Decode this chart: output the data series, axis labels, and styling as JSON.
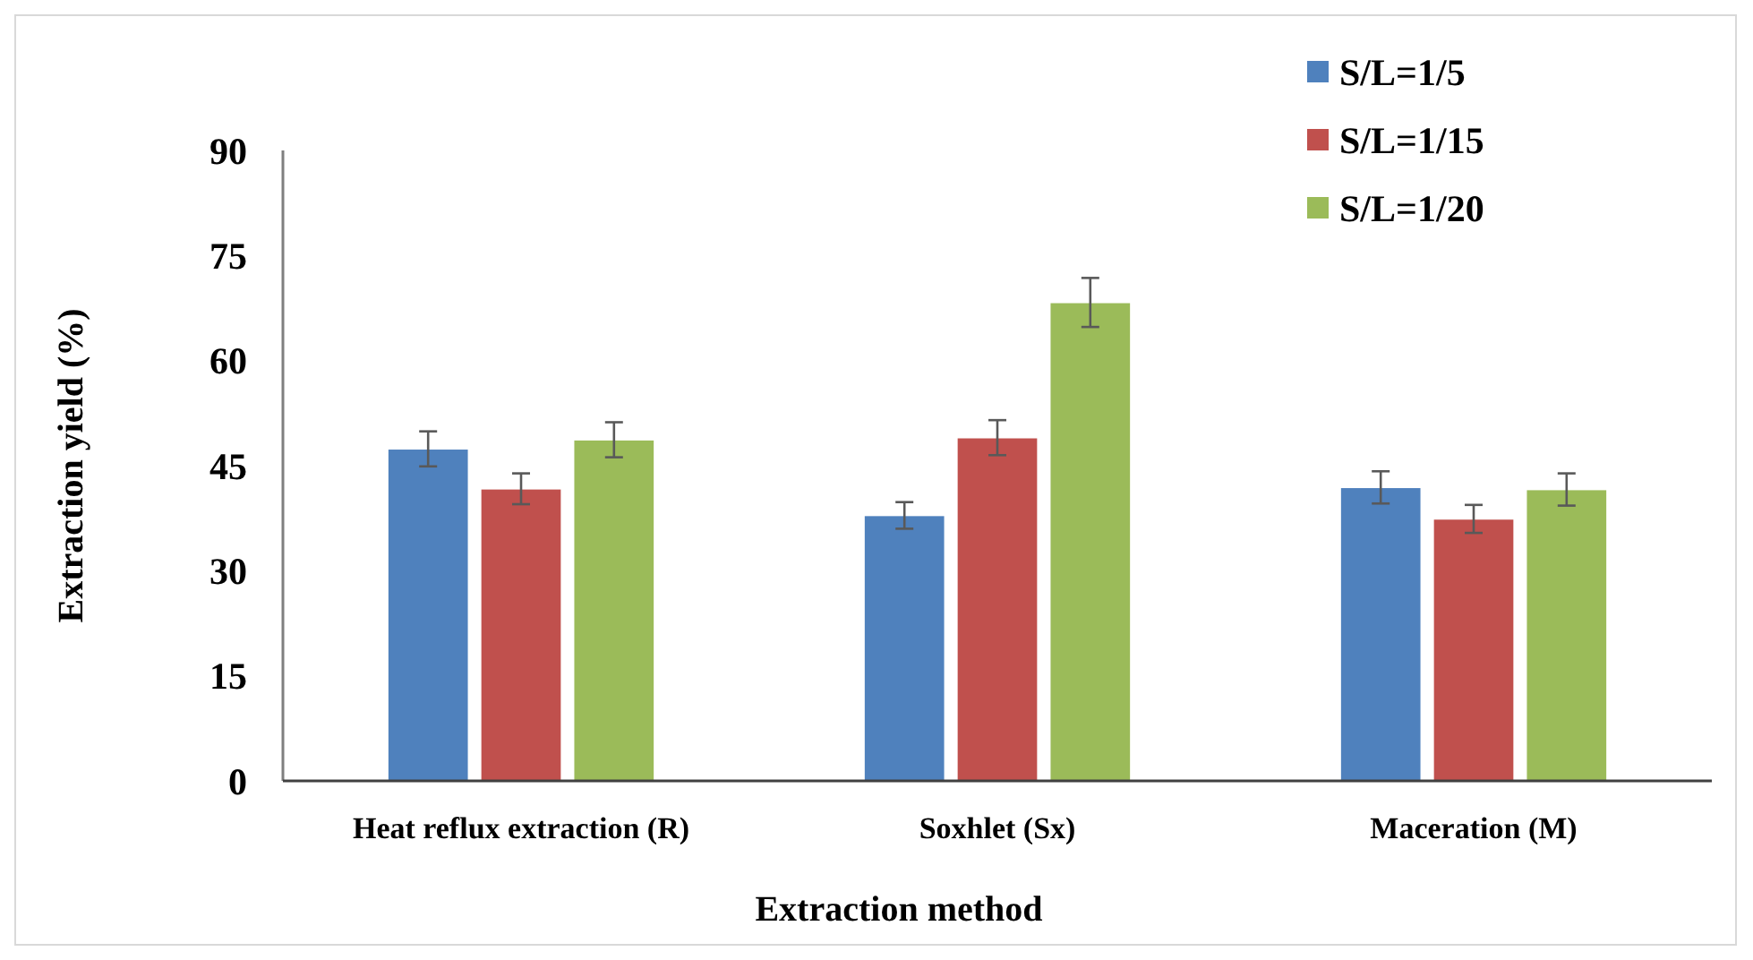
{
  "chart_data": {
    "type": "bar",
    "xlabel": "Extraction method",
    "ylabel": "Extraction yield (%)",
    "categories": [
      "Heat reflux extraction (R)",
      "Soxhlet (Sx)",
      "Maceration (M)"
    ],
    "series": [
      {
        "name": "S/L=1/5",
        "color": "#4f81bd",
        "values": [
          47.4,
          37.9,
          41.9
        ],
        "errors": [
          2.5,
          1.9,
          2.3
        ]
      },
      {
        "name": "S/L=1/15",
        "color": "#c0504d",
        "values": [
          41.7,
          49.0,
          37.4
        ],
        "errors": [
          2.2,
          2.5,
          2.0
        ]
      },
      {
        "name": "S/L=1/20",
        "color": "#9bbb59",
        "values": [
          48.7,
          68.3,
          41.6
        ],
        "errors": [
          2.5,
          3.5,
          2.3
        ]
      }
    ],
    "ylim": [
      0,
      90
    ],
    "yticks": [
      0,
      15,
      30,
      45,
      60,
      75,
      90
    ],
    "grid": false,
    "legend": "top right"
  }
}
